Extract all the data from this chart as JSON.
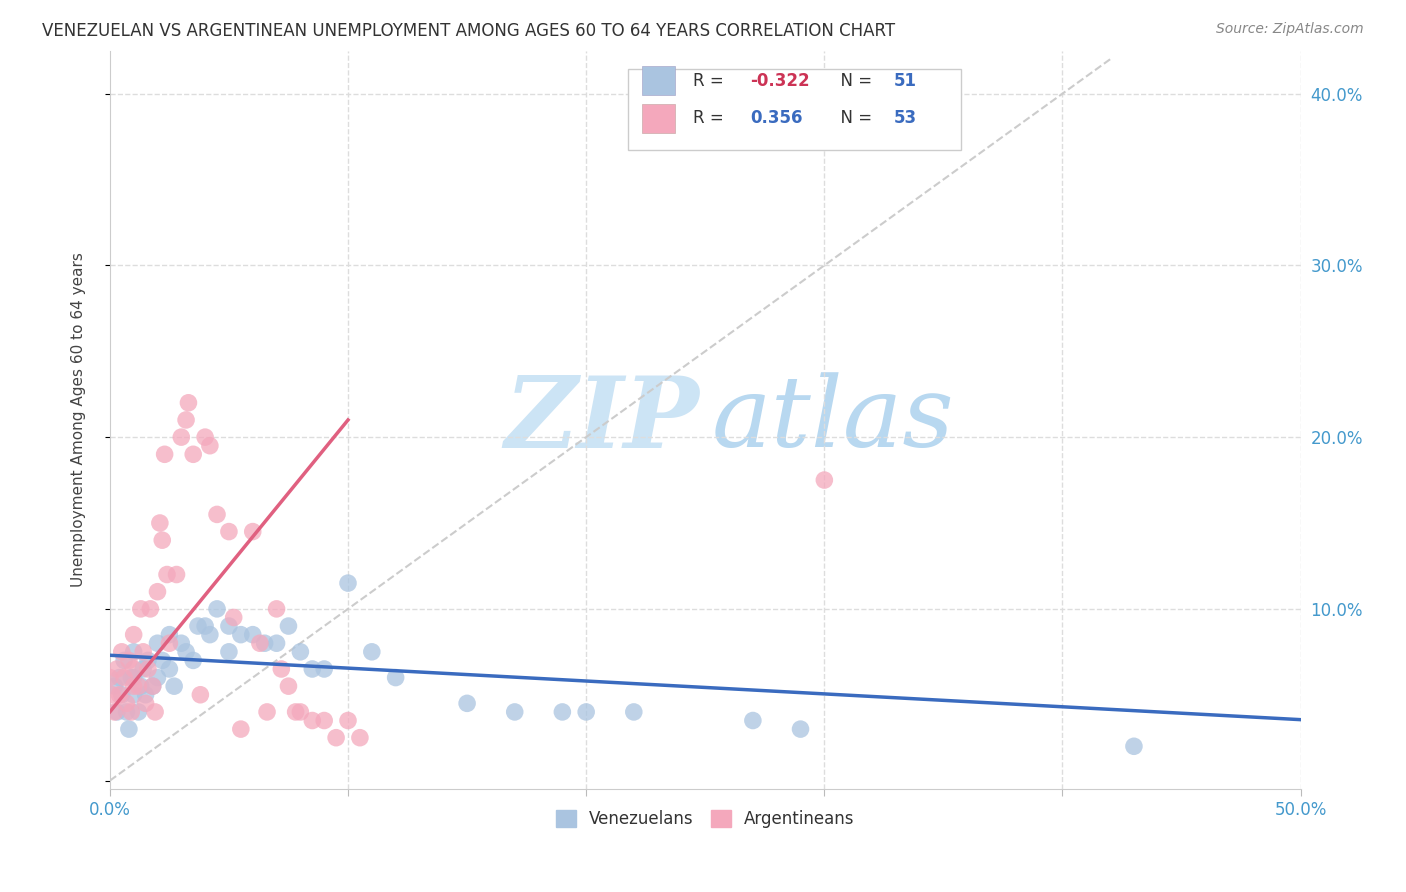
{
  "title": "VENEZUELAN VS ARGENTINEAN UNEMPLOYMENT AMONG AGES 60 TO 64 YEARS CORRELATION CHART",
  "source": "Source: ZipAtlas.com",
  "ylabel": "Unemployment Among Ages 60 to 64 years",
  "xlim": [
    0.0,
    0.5
  ],
  "ylim": [
    -0.005,
    0.425
  ],
  "xticks": [
    0.0,
    0.1,
    0.2,
    0.3,
    0.4,
    0.5
  ],
  "yticks": [
    0.0,
    0.1,
    0.2,
    0.3,
    0.4
  ],
  "xtick_labels_show": [
    "0.0%",
    "",
    "",
    "",
    "",
    "50.0%"
  ],
  "ytick_labels_right": [
    "",
    "10.0%",
    "20.0%",
    "30.0%",
    "40.0%"
  ],
  "venezuelan_color": "#aac4e0",
  "argentinean_color": "#f4a8bc",
  "venezuelan_line_color": "#3a6bbf",
  "argentinean_line_color": "#e06080",
  "diagonal_color": "#cccccc",
  "background_color": "#ffffff",
  "grid_color": "#dddddd",
  "legend_R_neg_color": "#cc3355",
  "legend_N_color": "#3a6bbf",
  "legend_text_color": "#555555",
  "venezuelan_x": [
    0.002,
    0.003,
    0.004,
    0.005,
    0.006,
    0.007,
    0.008,
    0.009,
    0.01,
    0.01,
    0.01,
    0.012,
    0.013,
    0.014,
    0.015,
    0.016,
    0.018,
    0.02,
    0.02,
    0.022,
    0.025,
    0.025,
    0.027,
    0.03,
    0.032,
    0.035,
    0.037,
    0.04,
    0.042,
    0.045,
    0.05,
    0.05,
    0.055,
    0.06,
    0.065,
    0.07,
    0.075,
    0.08,
    0.085,
    0.09,
    0.1,
    0.11,
    0.12,
    0.15,
    0.17,
    0.19,
    0.2,
    0.22,
    0.27,
    0.29,
    0.43
  ],
  "venezuelan_y": [
    0.055,
    0.04,
    0.06,
    0.05,
    0.07,
    0.04,
    0.03,
    0.06,
    0.05,
    0.06,
    0.075,
    0.04,
    0.055,
    0.065,
    0.05,
    0.07,
    0.055,
    0.06,
    0.08,
    0.07,
    0.065,
    0.085,
    0.055,
    0.08,
    0.075,
    0.07,
    0.09,
    0.09,
    0.085,
    0.1,
    0.09,
    0.075,
    0.085,
    0.085,
    0.08,
    0.08,
    0.09,
    0.075,
    0.065,
    0.065,
    0.115,
    0.075,
    0.06,
    0.045,
    0.04,
    0.04,
    0.04,
    0.04,
    0.035,
    0.03,
    0.02
  ],
  "argentinean_x": [
    0.0,
    0.001,
    0.002,
    0.003,
    0.004,
    0.005,
    0.006,
    0.007,
    0.008,
    0.009,
    0.01,
    0.01,
    0.01,
    0.012,
    0.013,
    0.014,
    0.015,
    0.016,
    0.017,
    0.018,
    0.019,
    0.02,
    0.021,
    0.022,
    0.023,
    0.024,
    0.025,
    0.028,
    0.03,
    0.032,
    0.033,
    0.035,
    0.038,
    0.04,
    0.042,
    0.045,
    0.05,
    0.052,
    0.055,
    0.06,
    0.063,
    0.066,
    0.07,
    0.072,
    0.075,
    0.078,
    0.08,
    0.085,
    0.09,
    0.095,
    0.1,
    0.105,
    0.3
  ],
  "argentinean_y": [
    0.06,
    0.05,
    0.04,
    0.065,
    0.05,
    0.075,
    0.06,
    0.045,
    0.07,
    0.04,
    0.085,
    0.065,
    0.055,
    0.055,
    0.1,
    0.075,
    0.045,
    0.065,
    0.1,
    0.055,
    0.04,
    0.11,
    0.15,
    0.14,
    0.19,
    0.12,
    0.08,
    0.12,
    0.2,
    0.21,
    0.22,
    0.19,
    0.05,
    0.2,
    0.195,
    0.155,
    0.145,
    0.095,
    0.03,
    0.145,
    0.08,
    0.04,
    0.1,
    0.065,
    0.055,
    0.04,
    0.04,
    0.035,
    0.035,
    0.025,
    0.035,
    0.025,
    0.175
  ],
  "ven_line_x": [
    0.0,
    0.5
  ],
  "ven_line_y_intercept": 0.073,
  "ven_line_slope": -0.075,
  "arg_line_x": [
    0.0,
    0.1
  ],
  "arg_line_y_intercept": 0.04,
  "arg_line_slope": 1.7,
  "watermark_zip_color": "#cce4f5",
  "watermark_atlas_color": "#b8d8f0"
}
